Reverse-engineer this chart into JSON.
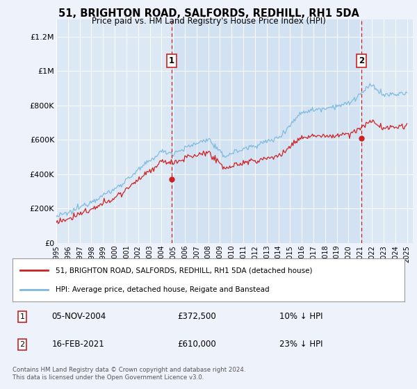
{
  "title": "51, BRIGHTON ROAD, SALFORDS, REDHILL, RH1 5DA",
  "subtitle": "Price paid vs. HM Land Registry's House Price Index (HPI)",
  "background_color": "#eef2fb",
  "plot_bg_color": "#dde8f5",
  "plot_bg_highlight": "#cddff0",
  "ylabel_ticks": [
    "£0",
    "£200K",
    "£400K",
    "£600K",
    "£800K",
    "£1M",
    "£1.2M"
  ],
  "ytick_values": [
    0,
    200000,
    400000,
    600000,
    800000,
    1000000,
    1200000
  ],
  "ylim": [
    0,
    1300000
  ],
  "xstart_year": 1995,
  "xend_year": 2025,
  "sale1_date": "05-NOV-2004",
  "sale1_price": 372500,
  "sale1_label": "1",
  "sale1_hpi_pct": "10% ↓ HPI",
  "sale2_date": "16-FEB-2021",
  "sale2_price": 610000,
  "sale2_label": "2",
  "sale2_hpi_pct": "23% ↓ HPI",
  "sale1_x": 2004.85,
  "sale2_x": 2021.12,
  "legend_line1": "51, BRIGHTON ROAD, SALFORDS, REDHILL, RH1 5DA (detached house)",
  "legend_line2": "HPI: Average price, detached house, Reigate and Banstead",
  "footnote": "Contains HM Land Registry data © Crown copyright and database right 2024.\nThis data is licensed under the Open Government Licence v3.0.",
  "hpi_color": "#7ab8de",
  "price_color": "#cc2222",
  "dashed_color": "#cc2222",
  "grid_color": "#c8d8e8"
}
